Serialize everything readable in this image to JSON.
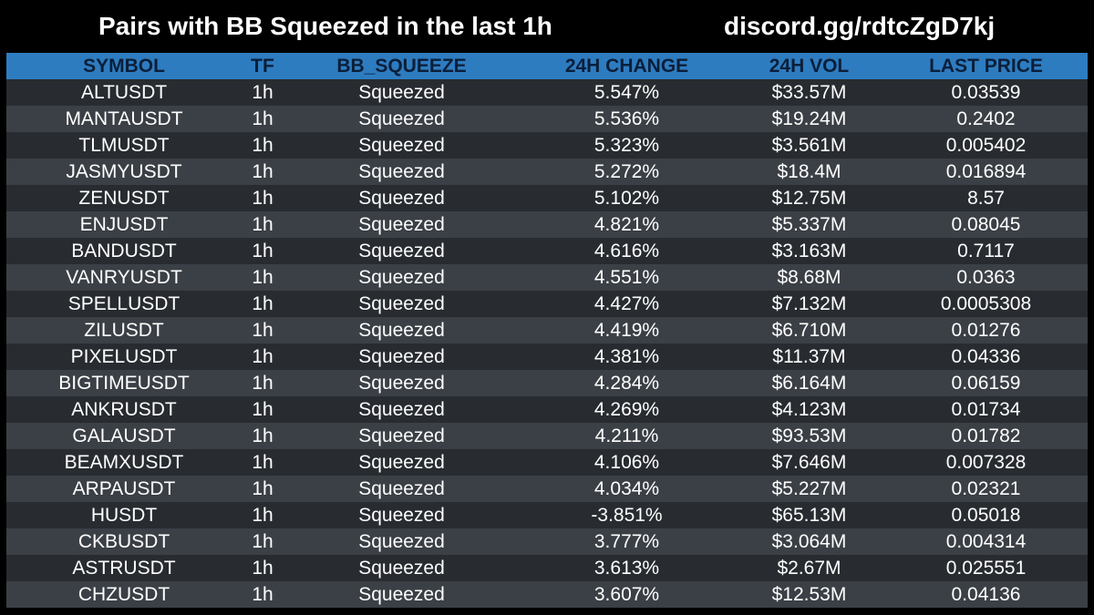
{
  "header": {
    "title": "Pairs with BB Squeezed in the last 1h",
    "link": "discord.gg/rdtcZgD7kj"
  },
  "colors": {
    "header_bg": "#2e7cc0",
    "header_text": "#0b1f3a",
    "row_dark": "#282c31",
    "row_light": "#3b4046",
    "background": "#000000"
  },
  "table": {
    "columns": [
      "SYMBOL",
      "TF",
      "BB_SQUEEZE",
      "24H CHANGE",
      "24H VOL",
      "LAST PRICE"
    ],
    "rows": [
      [
        "ALTUSDT",
        "1h",
        "Squeezed",
        "5.547%",
        "$33.57M",
        "0.03539"
      ],
      [
        "MANTAUSDT",
        "1h",
        "Squeezed",
        "5.536%",
        "$19.24M",
        "0.2402"
      ],
      [
        "TLMUSDT",
        "1h",
        "Squeezed",
        "5.323%",
        "$3.561M",
        "0.005402"
      ],
      [
        "JASMYUSDT",
        "1h",
        "Squeezed",
        "5.272%",
        "$18.4M",
        "0.016894"
      ],
      [
        "ZENUSDT",
        "1h",
        "Squeezed",
        "5.102%",
        "$12.75M",
        "8.57"
      ],
      [
        "ENJUSDT",
        "1h",
        "Squeezed",
        "4.821%",
        "$5.337M",
        "0.08045"
      ],
      [
        "BANDUSDT",
        "1h",
        "Squeezed",
        "4.616%",
        "$3.163M",
        "0.7117"
      ],
      [
        "VANRYUSDT",
        "1h",
        "Squeezed",
        "4.551%",
        "$8.68M",
        "0.0363"
      ],
      [
        "SPELLUSDT",
        "1h",
        "Squeezed",
        "4.427%",
        "$7.132M",
        "0.0005308"
      ],
      [
        "ZILUSDT",
        "1h",
        "Squeezed",
        "4.419%",
        "$6.710M",
        "0.01276"
      ],
      [
        "PIXELUSDT",
        "1h",
        "Squeezed",
        "4.381%",
        "$11.37M",
        "0.04336"
      ],
      [
        "BIGTIMEUSDT",
        "1h",
        "Squeezed",
        "4.284%",
        "$6.164M",
        "0.06159"
      ],
      [
        "ANKRUSDT",
        "1h",
        "Squeezed",
        "4.269%",
        "$4.123M",
        "0.01734"
      ],
      [
        "GALAUSDT",
        "1h",
        "Squeezed",
        "4.211%",
        "$93.53M",
        "0.01782"
      ],
      [
        "BEAMXUSDT",
        "1h",
        "Squeezed",
        "4.106%",
        "$7.646M",
        "0.007328"
      ],
      [
        "ARPAUSDT",
        "1h",
        "Squeezed",
        "4.034%",
        "$5.227M",
        "0.02321"
      ],
      [
        "HUSDT",
        "1h",
        "Squeezed",
        "-3.851%",
        "$65.13M",
        "0.05018"
      ],
      [
        "CKBUSDT",
        "1h",
        "Squeezed",
        "3.777%",
        "$3.064M",
        "0.004314"
      ],
      [
        "ASTRUSDT",
        "1h",
        "Squeezed",
        "3.613%",
        "$2.67M",
        "0.025551"
      ],
      [
        "CHZUSDT",
        "1h",
        "Squeezed",
        "3.607%",
        "$12.53M",
        "0.04136"
      ]
    ]
  }
}
